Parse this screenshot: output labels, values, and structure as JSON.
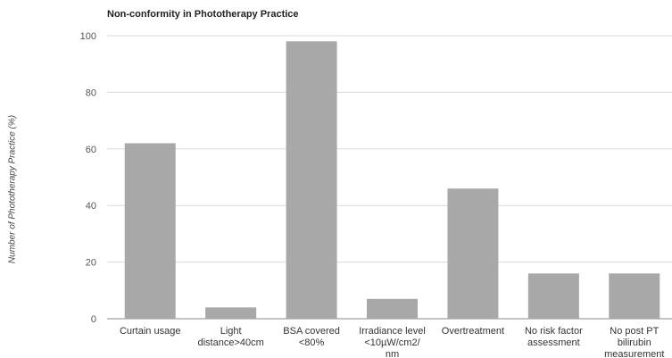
{
  "chart_data": {
    "type": "bar",
    "title": "Non-conformity in Phototherapy Practice",
    "xlabel": "",
    "ylabel": "Number of Phototherapy Practice (%)",
    "ylim": [
      0,
      100
    ],
    "yticks": [
      0,
      20,
      40,
      60,
      80,
      100
    ],
    "grid": true,
    "legend": "none",
    "bar_color": "#a8a8a8",
    "categories": [
      [
        "Curtain usage"
      ],
      [
        "Light",
        "distance>40cm"
      ],
      [
        "BSA covered",
        "<80%"
      ],
      [
        "Irradiance level",
        "<10µW/cm2/",
        "nm"
      ],
      [
        "Overtreatment"
      ],
      [
        "No risk factor",
        "assessment"
      ],
      [
        "No post PT",
        "bilirubin",
        "measurement"
      ]
    ],
    "values": [
      62,
      4,
      98,
      7,
      46,
      16,
      16
    ]
  }
}
